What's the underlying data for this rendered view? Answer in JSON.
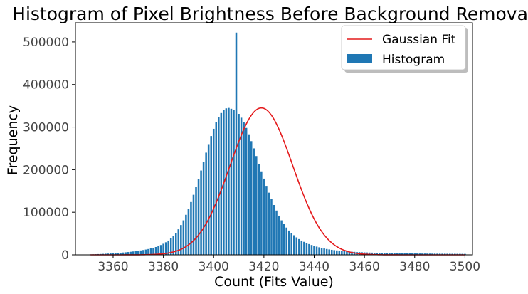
{
  "chart_data": {
    "type": "bar",
    "title": "Histogram of Pixel Brightness Before Background Removal",
    "xlabel": "Count (Fits Value)",
    "ylabel": "Frequency",
    "xlim": [
      3345,
      3503
    ],
    "ylim": [
      0,
      545000
    ],
    "x_ticks": [
      3360,
      3380,
      3400,
      3420,
      3440,
      3460,
      3480,
      3500
    ],
    "y_ticks": [
      0,
      100000,
      200000,
      300000,
      400000,
      500000
    ],
    "grid": false,
    "legend_position": "top-right",
    "bin_range": [
      3351,
      3500
    ],
    "bin_width": 1,
    "bar_color": "#1f77b4",
    "fit_color": "#e41a1c",
    "series": [
      {
        "name": "Histogram",
        "type": "bar",
        "x": [
          3351,
          3352,
          3353,
          3354,
          3355,
          3356,
          3357,
          3358,
          3359,
          3360,
          3361,
          3362,
          3363,
          3364,
          3365,
          3366,
          3367,
          3368,
          3369,
          3370,
          3371,
          3372,
          3373,
          3374,
          3375,
          3376,
          3377,
          3378,
          3379,
          3380,
          3381,
          3382,
          3383,
          3384,
          3385,
          3386,
          3387,
          3388,
          3389,
          3390,
          3391,
          3392,
          3393,
          3394,
          3395,
          3396,
          3397,
          3398,
          3399,
          3400,
          3401,
          3402,
          3403,
          3404,
          3405,
          3406,
          3407,
          3408,
          3409,
          3410,
          3411,
          3412,
          3413,
          3414,
          3415,
          3416,
          3417,
          3418,
          3419,
          3420,
          3421,
          3422,
          3423,
          3424,
          3425,
          3426,
          3427,
          3428,
          3429,
          3430,
          3431,
          3432,
          3433,
          3434,
          3435,
          3436,
          3437,
          3438,
          3439,
          3440,
          3441,
          3442,
          3443,
          3444,
          3445,
          3446,
          3447,
          3448,
          3449,
          3450,
          3451,
          3452,
          3453,
          3454,
          3455,
          3456,
          3457,
          3458,
          3459,
          3460,
          3461,
          3462,
          3463,
          3464,
          3465,
          3466,
          3467,
          3468,
          3469,
          3470,
          3471,
          3472,
          3473,
          3474,
          3475,
          3476,
          3477,
          3478,
          3479,
          3480,
          3481,
          3482,
          3483,
          3484,
          3485,
          3486,
          3487,
          3488,
          3489,
          3490,
          3491,
          3492,
          3493,
          3494,
          3495,
          3496,
          3497,
          3498,
          3499,
          3500
        ],
        "values": [
          1000,
          1200,
          1500,
          1800,
          2000,
          2300,
          2700,
          3000,
          3300,
          3700,
          4100,
          4500,
          5000,
          5500,
          6000,
          6600,
          7200,
          7900,
          8600,
          9400,
          10300,
          11300,
          12400,
          13600,
          15000,
          16600,
          18400,
          20500,
          23000,
          26000,
          29500,
          33500,
          38500,
          44500,
          51500,
          60000,
          70000,
          81000,
          94000,
          108000,
          124000,
          141000,
          159000,
          178000,
          198000,
          219000,
          240000,
          260000,
          279000,
          296000,
          311000,
          323000,
          333000,
          340000,
          344000,
          345000,
          343000,
          341000,
          522000,
          331000,
          322000,
          311000,
          298000,
          283000,
          267000,
          250000,
          232000,
          214000,
          196000,
          179000,
          162000,
          146000,
          131000,
          117000,
          104000,
          92000,
          81000,
          72000,
          64000,
          57000,
          51000,
          46000,
          41000,
          37000,
          33500,
          30500,
          27800,
          25300,
          23100,
          21100,
          19300,
          17700,
          16200,
          14900,
          13700,
          12700,
          11800,
          11000,
          10300,
          9700,
          9100,
          8600,
          8100,
          7700,
          7300,
          7000,
          6700,
          6400,
          6100,
          5800,
          5600,
          5400,
          5200,
          5000,
          4800,
          4700,
          4500,
          4400,
          4200,
          4100,
          4000,
          3900,
          3800,
          3700,
          3600,
          3500,
          3400,
          3350,
          3300,
          3250,
          3200,
          3150,
          3100,
          3050,
          3000,
          2950,
          2900,
          2850,
          2800,
          2750,
          2700,
          2650,
          2600,
          2550,
          2500,
          2450,
          2400,
          2350,
          2300,
          2250
        ]
      },
      {
        "name": "Gaussian Fit",
        "type": "line",
        "amplitude": 345000,
        "mean": 3419,
        "sigma": 12.5
      }
    ]
  }
}
